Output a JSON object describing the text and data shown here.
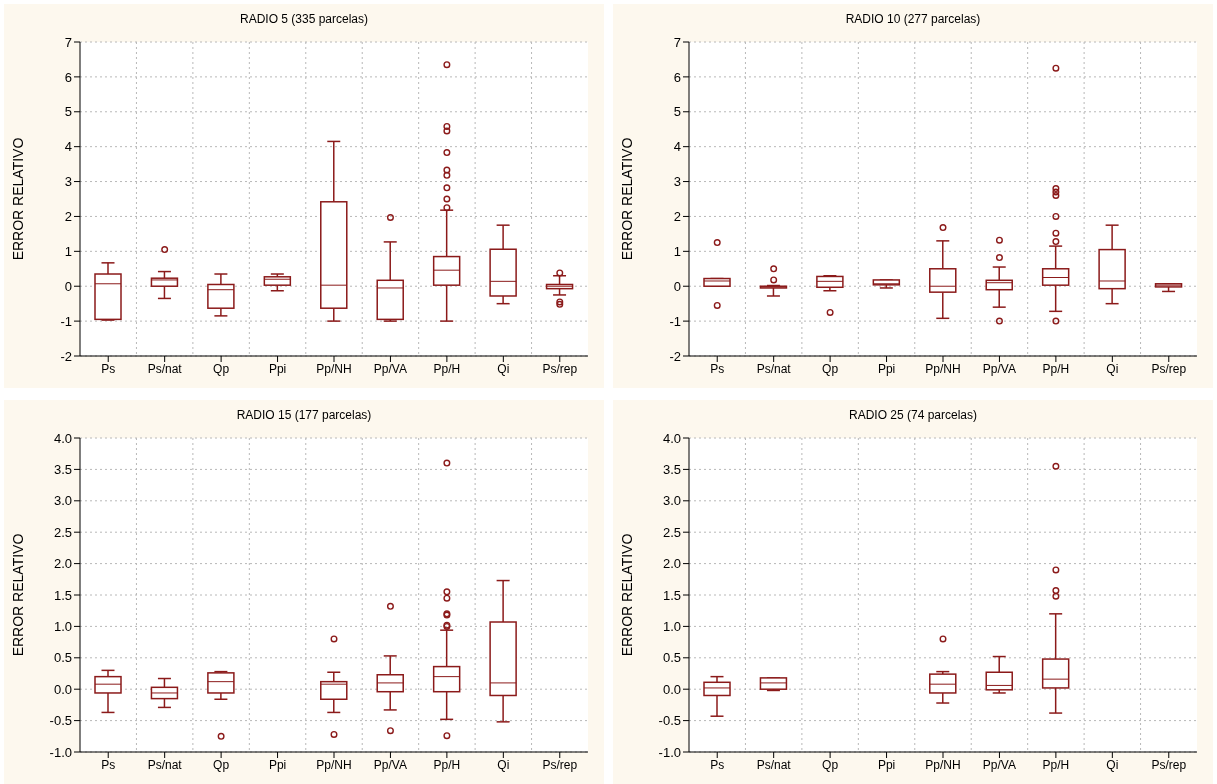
{
  "chart_data": [
    {
      "type": "box",
      "title": "RADIO 5 (335 parcelas)",
      "ylabel": "ERROR RELATIVO",
      "categories": [
        "Ps",
        "Ps/nat",
        "Qp",
        "Ppi",
        "Pp/NH",
        "Pp/VA",
        "Pp/H",
        "Qi",
        "Ps/rep"
      ],
      "color": "#8b1a1a",
      "grid": true,
      "ylim": [
        -2,
        7
      ],
      "yticks": [
        -2,
        -1,
        0,
        1,
        2,
        3,
        4,
        5,
        6,
        7
      ],
      "boxes": [
        {
          "low": -0.97,
          "q1": -0.95,
          "median": 0.07,
          "q3": 0.35,
          "high": 0.67
        },
        {
          "low": -0.35,
          "q1": 0.0,
          "median": 0.18,
          "q3": 0.23,
          "high": 0.42,
          "outliers": [
            1.05
          ]
        },
        {
          "low": -0.85,
          "q1": -0.63,
          "median": -0.1,
          "q3": 0.05,
          "high": 0.35
        },
        {
          "low": -0.13,
          "q1": 0.03,
          "median": 0.2,
          "q3": 0.27,
          "high": 0.35
        },
        {
          "low": -1.0,
          "q1": -0.63,
          "median": 0.03,
          "q3": 2.42,
          "high": 4.15
        },
        {
          "low": -1.0,
          "q1": -0.95,
          "median": -0.05,
          "q3": 0.17,
          "high": 1.27,
          "outliers": [
            1.97
          ]
        },
        {
          "low": -1.0,
          "q1": 0.03,
          "median": 0.46,
          "q3": 0.85,
          "high": 2.18,
          "outliers": [
            2.25,
            2.5,
            2.82,
            3.18,
            3.33,
            3.83,
            4.45,
            4.58,
            6.35
          ]
        },
        {
          "low": -0.5,
          "q1": -0.28,
          "median": 0.14,
          "q3": 1.06,
          "high": 1.75
        },
        {
          "low": -0.25,
          "q1": -0.07,
          "median": 0.0,
          "q3": 0.05,
          "high": 0.3,
          "outliers": [
            0.38,
            -0.45,
            -0.52
          ]
        }
      ]
    },
    {
      "type": "box",
      "title": "RADIO 10 (277 parcelas)",
      "ylabel": "ERROR RELATIVO",
      "categories": [
        "Ps",
        "Ps/nat",
        "Qp",
        "Ppi",
        "Pp/NH",
        "Pp/VA",
        "Pp/H",
        "Qi",
        "Ps/rep"
      ],
      "color": "#8b1a1a",
      "grid": true,
      "ylim": [
        -2,
        7
      ],
      "yticks": [
        -2,
        -1,
        0,
        1,
        2,
        3,
        4,
        5,
        6,
        7
      ],
      "boxes": [
        {
          "low": 0.0,
          "q1": 0.0,
          "median": 0.15,
          "q3": 0.22,
          "high": 0.22,
          "outliers": [
            1.25,
            -0.55
          ]
        },
        {
          "low": -0.28,
          "q1": -0.05,
          "median": -0.02,
          "q3": 0.0,
          "high": 0.02,
          "outliers": [
            0.18,
            0.5
          ]
        },
        {
          "low": -0.13,
          "q1": -0.03,
          "median": 0.14,
          "q3": 0.28,
          "high": 0.3,
          "outliers": [
            -0.75
          ]
        },
        {
          "low": -0.05,
          "q1": 0.04,
          "median": 0.07,
          "q3": 0.18,
          "high": 0.18
        },
        {
          "low": -0.92,
          "q1": -0.17,
          "median": 0.0,
          "q3": 0.5,
          "high": 1.3,
          "outliers": [
            1.68
          ]
        },
        {
          "low": -0.6,
          "q1": -0.1,
          "median": 0.1,
          "q3": 0.17,
          "high": 0.55,
          "outliers": [
            0.82,
            1.32,
            -1.0
          ]
        },
        {
          "low": -0.72,
          "q1": 0.03,
          "median": 0.25,
          "q3": 0.5,
          "high": 1.15,
          "outliers": [
            1.28,
            1.52,
            2.0,
            2.6,
            2.7,
            2.8,
            6.25,
            -1.0
          ]
        },
        {
          "low": -0.5,
          "q1": -0.07,
          "median": 0.15,
          "q3": 1.05,
          "high": 1.75
        },
        {
          "low": -0.15,
          "q1": -0.02,
          "median": 0.03,
          "q3": 0.07,
          "high": 0.07
        }
      ]
    },
    {
      "type": "box",
      "title": "RADIO 15 (177 parcelas)",
      "ylabel": "ERROR RELATIVO",
      "categories": [
        "Ps",
        "Ps/nat",
        "Qp",
        "Ppi",
        "Pp/NH",
        "Pp/VA",
        "Pp/H",
        "Qi",
        "Ps/rep"
      ],
      "color": "#8b1a1a",
      "grid": true,
      "ylim": [
        -1,
        4
      ],
      "yticks": [
        {
          "value": -1,
          "label": "-1.0"
        },
        {
          "value": -0.5,
          "label": "-0.5"
        },
        {
          "value": 0,
          "label": "0.0"
        },
        {
          "value": 0.5,
          "label": "0.5"
        },
        {
          "value": 1,
          "label": "1.0"
        },
        {
          "value": 1.5,
          "label": "1.5"
        },
        {
          "value": 2,
          "label": "2.0"
        },
        {
          "value": 2.5,
          "label": "2.5"
        },
        {
          "value": 3,
          "label": "3.0"
        },
        {
          "value": 3.5,
          "label": "3.5"
        },
        {
          "value": 4,
          "label": "4.0"
        }
      ],
      "boxes": [
        {
          "low": -0.37,
          "q1": -0.06,
          "median": 0.08,
          "q3": 0.2,
          "high": 0.3
        },
        {
          "low": -0.29,
          "q1": -0.15,
          "median": -0.06,
          "q3": 0.03,
          "high": 0.17
        },
        {
          "low": -0.16,
          "q1": -0.06,
          "median": 0.12,
          "q3": 0.26,
          "high": 0.28,
          "outliers": [
            -0.75
          ]
        },
        null,
        {
          "low": -0.37,
          "q1": -0.16,
          "median": 0.08,
          "q3": 0.12,
          "high": 0.27,
          "outliers": [
            0.8,
            -0.72
          ]
        },
        {
          "low": -0.33,
          "q1": -0.04,
          "median": 0.1,
          "q3": 0.23,
          "high": 0.53,
          "outliers": [
            1.32,
            -0.66
          ]
        },
        {
          "low": -0.48,
          "q1": -0.04,
          "median": 0.2,
          "q3": 0.36,
          "high": 0.94,
          "outliers": [
            1.0,
            1.02,
            1.18,
            1.2,
            1.45,
            1.55,
            3.6,
            -0.74
          ]
        },
        {
          "low": -0.52,
          "q1": -0.1,
          "median": 0.1,
          "q3": 1.07,
          "high": 1.73
        },
        null
      ]
    },
    {
      "type": "box",
      "title": "RADIO 25 (74 parcelas)",
      "ylabel": "ERROR RELATIVO",
      "categories": [
        "Ps",
        "Ps/nat",
        "Qp",
        "Ppi",
        "Pp/NH",
        "Pp/VA",
        "Pp/H",
        "Qi",
        "Ps/rep"
      ],
      "color": "#8b1a1a",
      "grid": true,
      "ylim": [
        -1,
        4
      ],
      "yticks": [
        {
          "value": -1,
          "label": "-1.0"
        },
        {
          "value": -0.5,
          "label": "-0.5"
        },
        {
          "value": 0,
          "label": "0.0"
        },
        {
          "value": 0.5,
          "label": "0.5"
        },
        {
          "value": 1,
          "label": "1.0"
        },
        {
          "value": 1.5,
          "label": "1.5"
        },
        {
          "value": 2,
          "label": "2.0"
        },
        {
          "value": 2.5,
          "label": "2.5"
        },
        {
          "value": 3,
          "label": "3.0"
        },
        {
          "value": 3.5,
          "label": "3.5"
        },
        {
          "value": 4,
          "label": "4.0"
        }
      ],
      "boxes": [
        {
          "low": -0.43,
          "q1": -0.1,
          "median": 0.02,
          "q3": 0.11,
          "high": 0.2
        },
        {
          "low": -0.02,
          "q1": 0.0,
          "median": 0.1,
          "q3": 0.18,
          "high": 0.18
        },
        null,
        null,
        {
          "low": -0.22,
          "q1": -0.06,
          "median": 0.08,
          "q3": 0.24,
          "high": 0.28,
          "outliers": [
            0.8
          ]
        },
        {
          "low": -0.06,
          "q1": -0.01,
          "median": 0.06,
          "q3": 0.27,
          "high": 0.52
        },
        {
          "low": -0.38,
          "q1": 0.02,
          "median": 0.16,
          "q3": 0.48,
          "high": 1.2,
          "outliers": [
            1.48,
            1.57,
            1.9,
            3.55
          ]
        },
        null,
        null
      ]
    }
  ]
}
